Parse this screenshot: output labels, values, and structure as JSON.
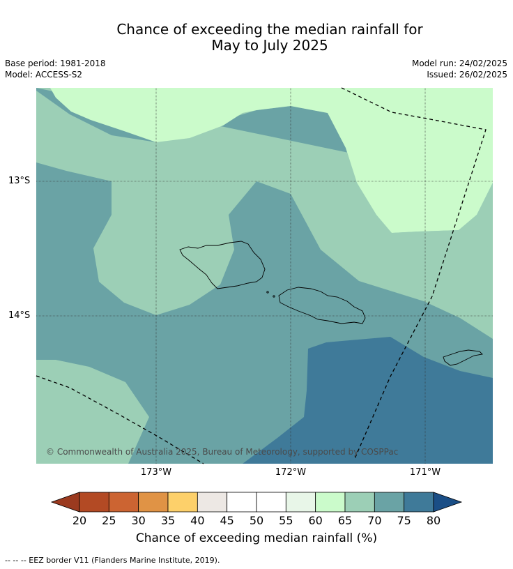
{
  "title_line1": "Chance of exceeding the median rainfall for",
  "title_line2": "May to July 2025",
  "base_period": "Base period: 1981-2018",
  "model": "Model: ACCESS-S2",
  "model_run": "Model run: 24/02/2025",
  "issued": "Issued: 26/02/2025",
  "lat_labels": [
    "13°S",
    "14°S"
  ],
  "lon_labels": [
    "173°W",
    "172°W",
    "171°W"
  ],
  "copyright": "© Commonwealth of Australia 2025, Bureau of Meteorology, supported by COSPPac",
  "colorbar": {
    "ticks": [
      "20",
      "25",
      "30",
      "35",
      "40",
      "45",
      "50",
      "55",
      "60",
      "65",
      "70",
      "75",
      "80"
    ],
    "colors": [
      "#9b3a1f",
      "#b34a24",
      "#cc6432",
      "#e09345",
      "#fdd06a",
      "#ede8e4",
      "#ffffff",
      "#ffffff",
      "#e8f6e8",
      "#cbfbcb",
      "#9ccfb6",
      "#6aa3a5",
      "#3f7a99",
      "#1a4e86"
    ],
    "label": "Chance of exceeding median rainfall (%)"
  },
  "footnote": "--  --  -- EEZ border V11 (Flanders Marine Institute, 2019)."
}
